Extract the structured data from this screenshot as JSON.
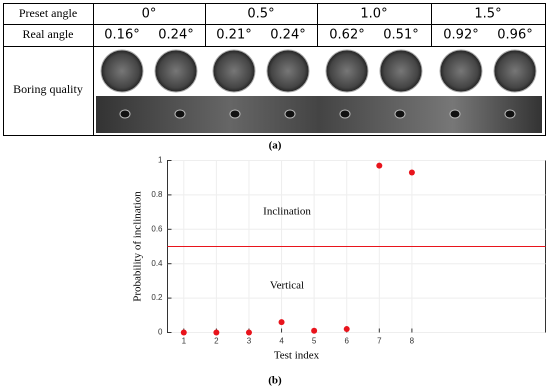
{
  "table": {
    "rows": [
      [
        "Preset angle",
        "0°",
        "0.5°",
        "1.0°",
        "1.5°"
      ],
      [
        "Real angle",
        "0.16°",
        "0.24°",
        "0.21°",
        "0.24°",
        "0.62°",
        "0.51°",
        "0.92°",
        "0.96°"
      ],
      [
        "Boring quality"
      ]
    ]
  },
  "caption_a": "(a)",
  "chart_data": {
    "type": "scatter",
    "x_label": "Test index",
    "y_label": "Probability of inclination",
    "x": [
      1,
      2,
      3,
      4,
      5,
      6,
      7,
      8
    ],
    "values": [
      0,
      0,
      0,
      0.06,
      0.01,
      0.02,
      0.97,
      0.93
    ],
    "color": "#e8141c",
    "xlim": [
      0.5,
      12.1
    ],
    "ylim": [
      0,
      1
    ],
    "xticks": [
      1,
      2,
      3,
      4,
      5,
      6,
      7,
      8
    ],
    "yticks": [
      0,
      0.2,
      0.4,
      0.6,
      0.8,
      1
    ],
    "grid": true,
    "threshold": 0.5,
    "threshold_color": "#e8141c",
    "annotations": [
      "Inclination",
      "Vertical"
    ]
  },
  "caption_b": "(b)"
}
